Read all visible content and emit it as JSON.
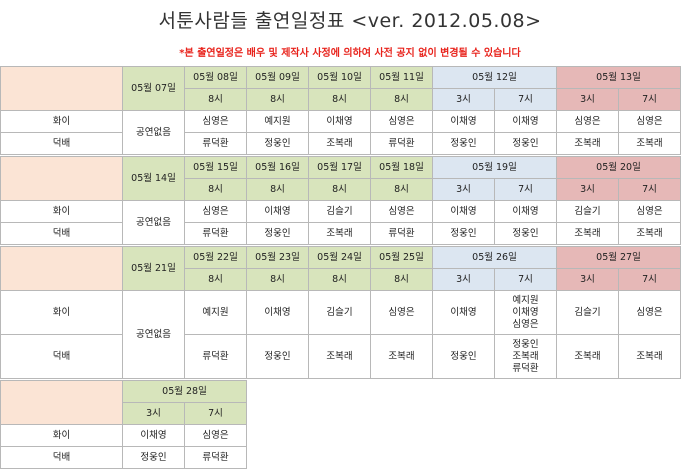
{
  "header": {
    "title": "서툰사람들 출연일정표 <ver. 2012.05.08>",
    "notice": "*본 출연일정은 배우 및 제작사 사정에 의하여 사전 공지 없이 변경될 수 있습니다"
  },
  "roles": [
    "화이",
    "덕배"
  ],
  "no_show": "공연없음",
  "weeks": [
    {
      "monday": "05월 07일",
      "weekdays": [
        {
          "date": "05월 08일",
          "time": "8시",
          "hwai": "심영은",
          "deokbae": "류덕환"
        },
        {
          "date": "05월 09일",
          "time": "8시",
          "hwai": "예지원",
          "deokbae": "정웅인"
        },
        {
          "date": "05월 10일",
          "time": "8시",
          "hwai": "이채영",
          "deokbae": "조복래"
        },
        {
          "date": "05월 11일",
          "time": "8시",
          "hwai": "심영은",
          "deokbae": "류덕환"
        }
      ],
      "saturday": {
        "date": "05월 12일",
        "times": [
          "3시",
          "7시"
        ],
        "hwai": [
          "이채영",
          "이채영"
        ],
        "deokbae": [
          "정웅인",
          "정웅인"
        ]
      },
      "sunday": {
        "date": "05월 13일",
        "times": [
          "3시",
          "7시"
        ],
        "hwai": [
          "심영은",
          "심영은"
        ],
        "deokbae": [
          "조복래",
          "조복래"
        ]
      }
    },
    {
      "monday": "05월 14일",
      "weekdays": [
        {
          "date": "05월 15일",
          "time": "8시",
          "hwai": "심영은",
          "deokbae": "류덕환"
        },
        {
          "date": "05월 16일",
          "time": "8시",
          "hwai": "이채영",
          "deokbae": "정웅인"
        },
        {
          "date": "05월 17일",
          "time": "8시",
          "hwai": "김슬기",
          "deokbae": "조복래"
        },
        {
          "date": "05월 18일",
          "time": "8시",
          "hwai": "심영은",
          "deokbae": "류덕환"
        }
      ],
      "saturday": {
        "date": "05월 19일",
        "times": [
          "3시",
          "7시"
        ],
        "hwai": [
          "이채영",
          "이채영"
        ],
        "deokbae": [
          "정웅인",
          "정웅인"
        ]
      },
      "sunday": {
        "date": "05월 20일",
        "times": [
          "3시",
          "7시"
        ],
        "hwai": [
          "김슬기",
          "심영은"
        ],
        "deokbae": [
          "조복래",
          "조복래"
        ]
      }
    },
    {
      "monday": "05월 21일",
      "weekdays": [
        {
          "date": "05월 22일",
          "time": "8시",
          "hwai": "예지원",
          "deokbae": "류덕환"
        },
        {
          "date": "05월 23일",
          "time": "8시",
          "hwai": "이채영",
          "deokbae": "정웅인"
        },
        {
          "date": "05월 24일",
          "time": "8시",
          "hwai": "김슬기",
          "deokbae": "조복래"
        },
        {
          "date": "05월 25일",
          "time": "8시",
          "hwai": "심영은",
          "deokbae": "조복래"
        }
      ],
      "saturday": {
        "date": "05월 26일",
        "times": [
          "3시",
          "7시"
        ],
        "hwai": [
          "이채영",
          [
            "예지원",
            "이채영",
            "심영은"
          ]
        ],
        "deokbae": [
          "정웅인",
          [
            "정웅인",
            "조복래",
            "류덕환"
          ]
        ]
      },
      "sunday": {
        "date": "05월 27일",
        "times": [
          "3시",
          "7시"
        ],
        "hwai": [
          "김슬기",
          "심영은"
        ],
        "deokbae": [
          "조복래",
          "조복래"
        ]
      }
    }
  ],
  "last_week": {
    "date": "05월 28일",
    "times": [
      "3시",
      "7시"
    ],
    "hwai": [
      "이채영",
      "심영은"
    ],
    "deokbae": [
      "정웅인",
      "류덕환"
    ]
  }
}
